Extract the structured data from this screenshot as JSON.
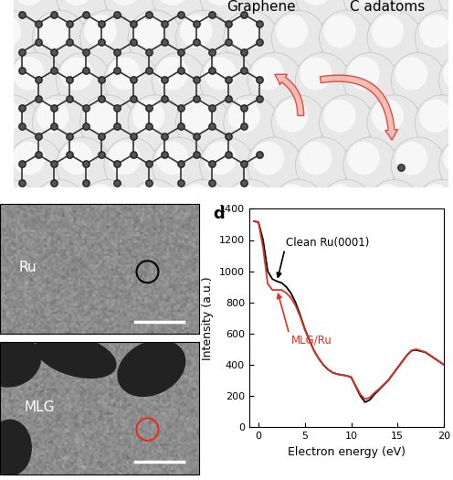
{
  "schematic": {
    "labels": [
      "Graphene",
      "C adatoms"
    ]
  },
  "images": [
    {
      "label": "Ru"
    },
    {
      "label": "MLG"
    }
  ],
  "panel_label": "d",
  "chart_data": {
    "type": "line",
    "x_label": "Electron energy (eV)",
    "y_label": "Intensity (a.u.)",
    "x": [
      -0.5,
      0,
      0.5,
      1,
      1.5,
      2,
      2.5,
      3,
      3.5,
      4,
      4.5,
      5,
      5.5,
      6,
      6.5,
      7,
      7.5,
      8,
      8.5,
      9,
      9.5,
      10,
      10.5,
      11,
      11.5,
      12,
      12.5,
      13,
      14,
      15,
      16,
      16.5,
      17,
      18,
      19,
      20
    ],
    "series": [
      {
        "name": "Clean Ru(0001)",
        "color": "#000000",
        "values": [
          1320,
          1315,
          1200,
          1000,
          950,
          935,
          925,
          900,
          860,
          800,
          720,
          630,
          560,
          490,
          440,
          400,
          370,
          350,
          340,
          335,
          330,
          320,
          260,
          200,
          160,
          175,
          210,
          240,
          300,
          380,
          460,
          490,
          495,
          480,
          440,
          400
        ]
      },
      {
        "name": "MLG/Ru",
        "color": "#e03020",
        "values": [
          1320,
          1315,
          1150,
          920,
          880,
          880,
          880,
          860,
          830,
          780,
          710,
          625,
          555,
          488,
          440,
          400,
          370,
          350,
          340,
          335,
          330,
          322,
          265,
          210,
          180,
          190,
          220,
          245,
          302,
          382,
          462,
          492,
          500,
          482,
          442,
          400
        ]
      }
    ],
    "xlim": [
      -1,
      20
    ],
    "xticks": [
      0,
      5,
      10,
      15,
      20
    ],
    "ylim": [
      0,
      1400
    ],
    "yticks": [
      0,
      200,
      400,
      600,
      800,
      1000,
      1200,
      1400
    ],
    "grid": false
  }
}
